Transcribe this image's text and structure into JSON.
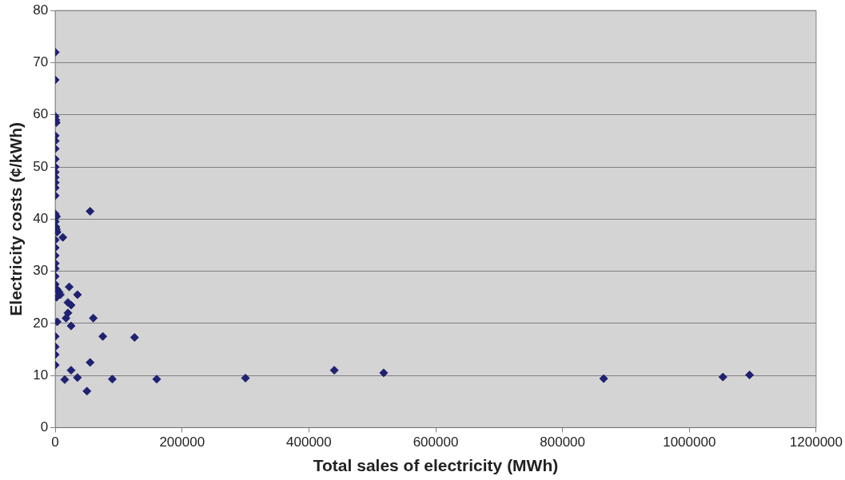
{
  "chart_data": {
    "type": "scatter",
    "xlabel": "Total sales of electricity (MWh)",
    "ylabel": "Electricity costs (¢/kWh)",
    "xlim": [
      0,
      1200000
    ],
    "xticks": [
      0,
      200000,
      400000,
      600000,
      800000,
      1000000,
      1200000
    ],
    "ylim": [
      0,
      80
    ],
    "yticks": [
      0,
      10,
      20,
      30,
      40,
      50,
      60,
      70,
      80
    ],
    "grid": "y",
    "legend": false,
    "marker": "diamond",
    "series": [
      {
        "color": "#1f2270",
        "x": [
          0,
          0,
          0,
          1000,
          1500,
          0,
          0,
          0,
          0,
          0,
          0,
          0,
          0,
          0,
          0,
          0,
          2000,
          55000,
          0,
          1000,
          2000,
          3000,
          12000,
          0,
          0,
          0,
          0,
          0,
          0,
          0,
          3000,
          6000,
          8000,
          2000,
          22000,
          35000,
          20000,
          25000,
          20000,
          17000,
          60000,
          3000,
          25000,
          75000,
          125000,
          0,
          0,
          0,
          0,
          55000,
          25000,
          15000,
          35000,
          90000,
          50000,
          160000,
          300000,
          440000,
          518000,
          865000,
          1053000,
          1095000
        ],
        "values": [
          72,
          66.7,
          59.7,
          59,
          58.5,
          56,
          55,
          53.5,
          51.5,
          50,
          49,
          48,
          47,
          46,
          44.5,
          41,
          40.5,
          41.5,
          39.5,
          38.5,
          38,
          37.5,
          36.5,
          36,
          34.5,
          33,
          31.5,
          30.5,
          29,
          27.5,
          26.5,
          26,
          25.5,
          25,
          27,
          25.5,
          24,
          23.5,
          22,
          21,
          21,
          20.3,
          19.5,
          17.5,
          17.3,
          17.5,
          15.5,
          14,
          12,
          12.5,
          11,
          9.2,
          9.6,
          9.3,
          7,
          9.3,
          9.5,
          11,
          10.5,
          9.4,
          9.7,
          10.1
        ]
      }
    ]
  }
}
